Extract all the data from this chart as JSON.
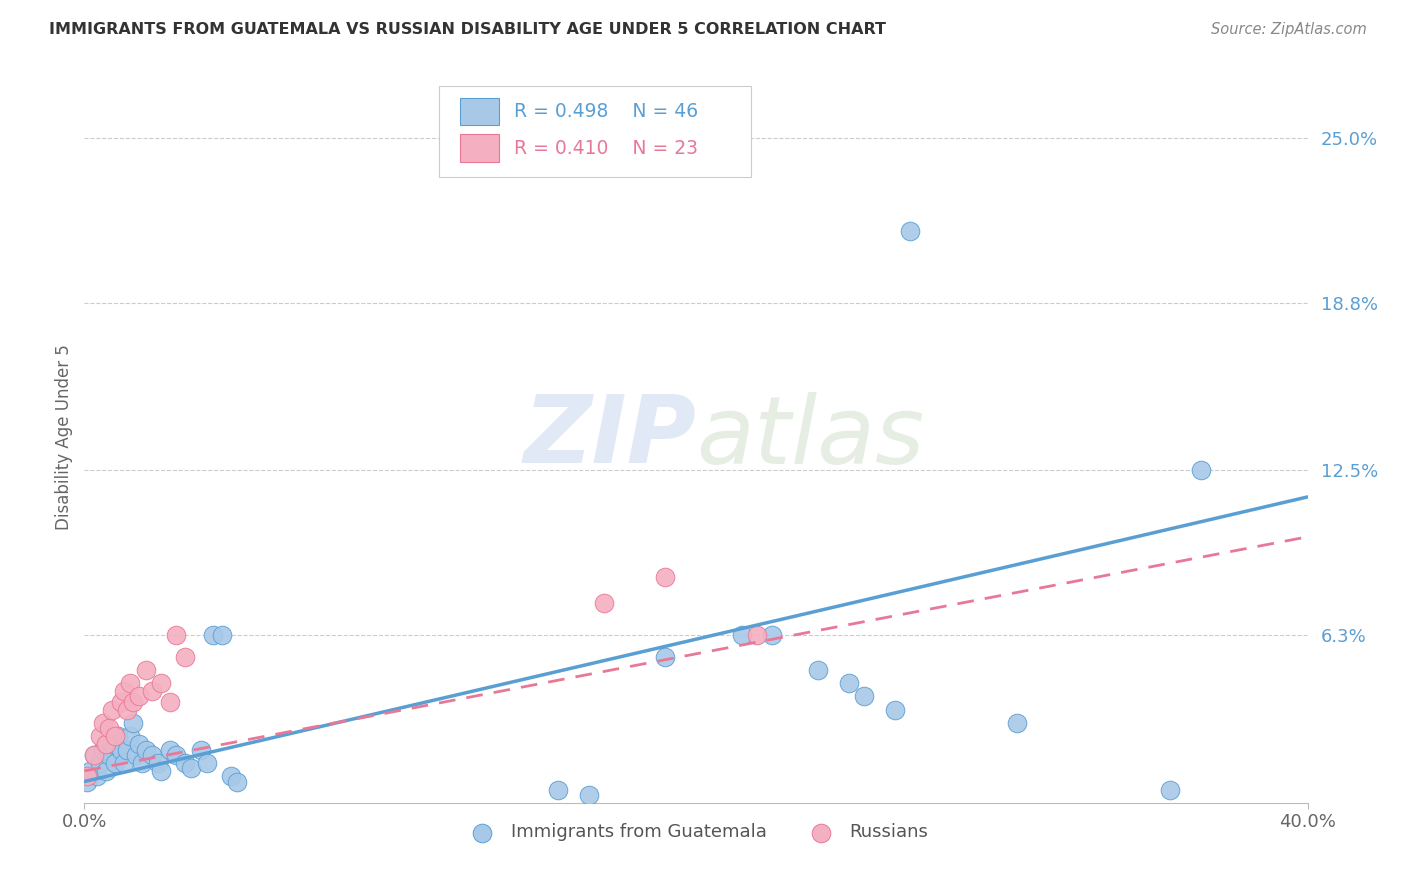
{
  "title": "IMMIGRANTS FROM GUATEMALA VS RUSSIAN DISABILITY AGE UNDER 5 CORRELATION CHART",
  "source": "Source: ZipAtlas.com",
  "ylabel": "Disability Age Under 5",
  "xlim": [
    0.0,
    0.4
  ],
  "ylim": [
    0.0,
    0.275
  ],
  "xtick_labels": [
    "0.0%",
    "40.0%"
  ],
  "ytick_labels": [
    "25.0%",
    "18.8%",
    "12.5%",
    "6.3%"
  ],
  "ytick_values": [
    0.25,
    0.188,
    0.125,
    0.063
  ],
  "color_blue": "#a8c8e8",
  "color_pink": "#f4b0c0",
  "color_blue_dark": "#5a9fd4",
  "color_pink_dark": "#e87898",
  "color_blue_text": "#5a9fd4",
  "color_pink_text": "#e87898",
  "watermark_zip": "ZIP",
  "watermark_atlas": "atlas",
  "guatemala_x": [
    0.001,
    0.002,
    0.003,
    0.004,
    0.005,
    0.006,
    0.007,
    0.008,
    0.009,
    0.01,
    0.011,
    0.012,
    0.013,
    0.014,
    0.015,
    0.016,
    0.017,
    0.018,
    0.019,
    0.02,
    0.022,
    0.024,
    0.025,
    0.028,
    0.03,
    0.033,
    0.035,
    0.038,
    0.04,
    0.042,
    0.045,
    0.048,
    0.05,
    0.155,
    0.165,
    0.19,
    0.215,
    0.225,
    0.24,
    0.25,
    0.255,
    0.265,
    0.27,
    0.305,
    0.355,
    0.365
  ],
  "guatemala_y": [
    0.008,
    0.012,
    0.018,
    0.01,
    0.015,
    0.02,
    0.012,
    0.018,
    0.022,
    0.015,
    0.025,
    0.02,
    0.015,
    0.02,
    0.025,
    0.03,
    0.018,
    0.022,
    0.015,
    0.02,
    0.018,
    0.015,
    0.012,
    0.02,
    0.018,
    0.015,
    0.013,
    0.02,
    0.015,
    0.063,
    0.063,
    0.01,
    0.008,
    0.005,
    0.003,
    0.055,
    0.063,
    0.063,
    0.05,
    0.045,
    0.04,
    0.035,
    0.215,
    0.03,
    0.005,
    0.125
  ],
  "russian_x": [
    0.001,
    0.003,
    0.005,
    0.006,
    0.007,
    0.008,
    0.009,
    0.01,
    0.012,
    0.013,
    0.014,
    0.015,
    0.016,
    0.018,
    0.02,
    0.022,
    0.025,
    0.028,
    0.03,
    0.033,
    0.17,
    0.19,
    0.22
  ],
  "russian_y": [
    0.01,
    0.018,
    0.025,
    0.03,
    0.022,
    0.028,
    0.035,
    0.025,
    0.038,
    0.042,
    0.035,
    0.045,
    0.038,
    0.04,
    0.05,
    0.042,
    0.045,
    0.038,
    0.063,
    0.055,
    0.075,
    0.085,
    0.063
  ],
  "blue_line_x0": 0.0,
  "blue_line_y0": 0.008,
  "blue_line_x1": 0.4,
  "blue_line_y1": 0.115,
  "pink_line_x0": 0.0,
  "pink_line_y0": 0.012,
  "pink_line_x1": 0.4,
  "pink_line_y1": 0.1
}
